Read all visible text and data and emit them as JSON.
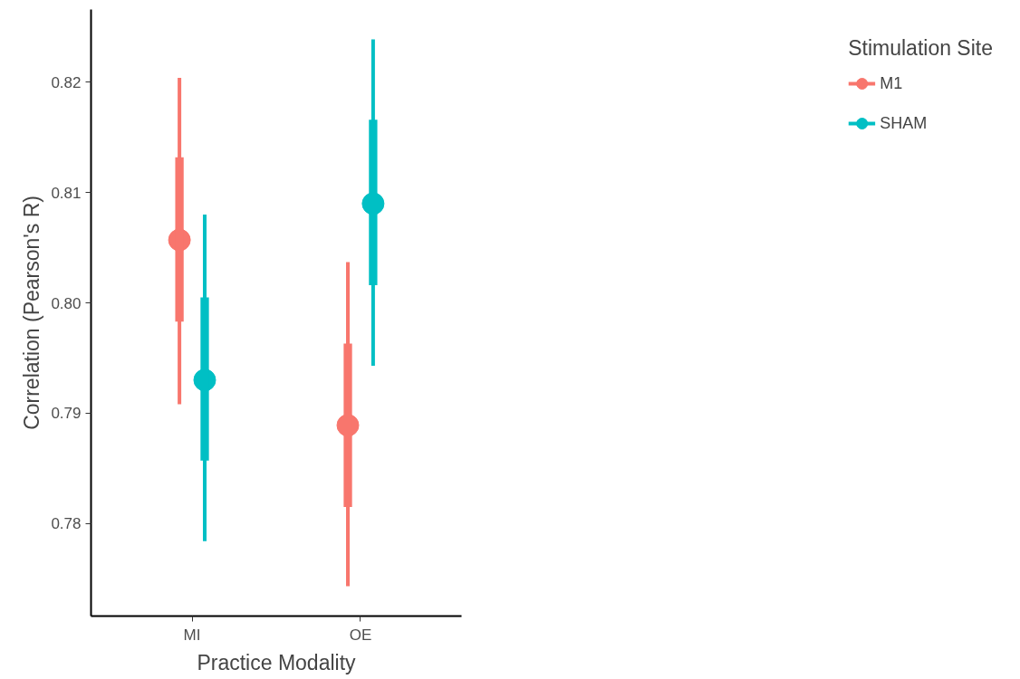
{
  "chart_data": {
    "type": "scatter",
    "xlabel": "Practice Modality",
    "ylabel": "Correlation (Pearson's R)",
    "legend_title": "Stimulation Site",
    "categories": [
      "MI",
      "OE"
    ],
    "series": [
      {
        "name": "M1",
        "color": "#f8766d",
        "values": [
          0.8057,
          0.7889
        ],
        "errors": [
          [
            0.7908,
            0.8204
          ],
          [
            0.7743,
            0.8037
          ]
        ]
      },
      {
        "name": "SHAM",
        "color": "#00bfc4",
        "values": [
          0.793,
          0.809
        ],
        "errors": [
          [
            0.7784,
            0.808
          ],
          [
            0.7943,
            0.8239
          ]
        ]
      },
      {
        "type": "bar",
        "color": "#f8766d",
        "base": [
          0.7983,
          0.7815
        ],
        "values": [
          0.0149,
          0.0148
        ]
      },
      {
        "type": "bar",
        "color": "#00bfc4",
        "base": [
          0.7857,
          0.8016
        ],
        "values": [
          0.0148,
          0.015
        ]
      }
    ],
    "ylim": [
      0.7716,
      0.8266
    ],
    "yticks": [
      0.78,
      0.79,
      {
        "value": 0.8,
        "label": "0.80"
      },
      0.81,
      0.82
    ],
    "grid": false,
    "legend": "right",
    "marker": "circle"
  }
}
